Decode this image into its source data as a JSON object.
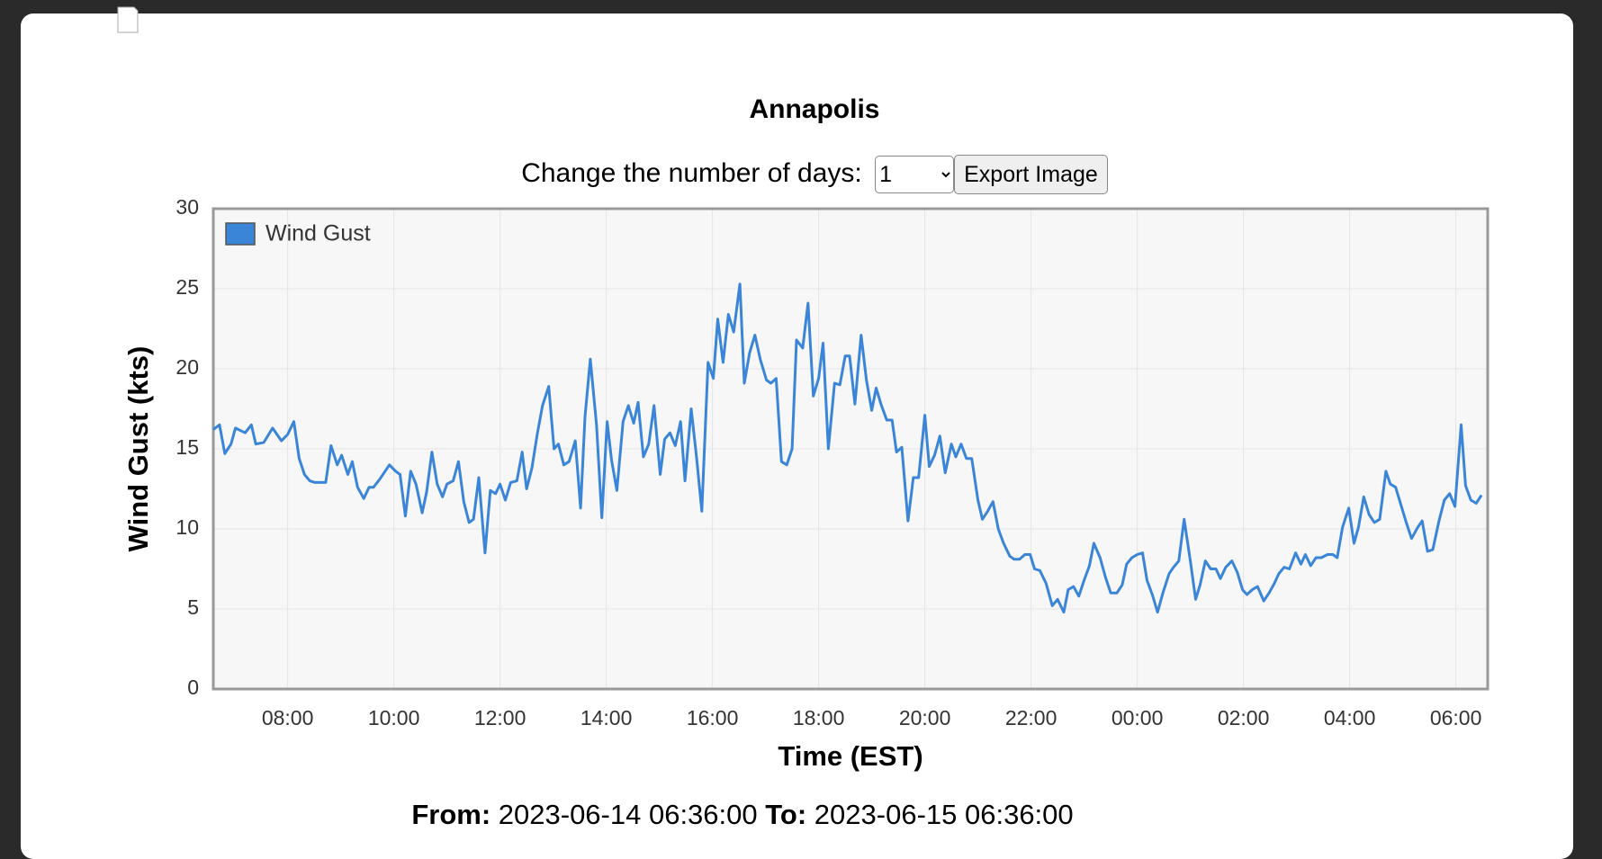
{
  "controls": {
    "label": "Change the number of days:",
    "days": "1",
    "button": "Export Image"
  },
  "footer": {
    "from_label": "From:",
    "to_label": "To:"
  },
  "chart_data": {
    "type": "line",
    "title": "Annapolis",
    "x_label": "Time (EST)",
    "y_label": "Wind Gust (kts)",
    "xlim": [
      "2023-06-14 06:36:00",
      "2023-06-15 06:36:00"
    ],
    "xticks": [
      "08:00",
      "10:00",
      "12:00",
      "14:00",
      "16:00",
      "18:00",
      "20:00",
      "22:00",
      "00:00",
      "02:00",
      "04:00",
      "06:00"
    ],
    "ylim": [
      0,
      30
    ],
    "yticks": [
      0,
      5,
      10,
      15,
      20,
      25,
      30
    ],
    "grid": true,
    "legend": "upper left",
    "x": [
      "06:36",
      "06:43",
      "06:49",
      "06:56",
      "07:01",
      "07:12",
      "07:19",
      "07:24",
      "07:33",
      "07:43",
      "07:53",
      "08:00",
      "08:07",
      "08:13",
      "08:19",
      "08:25",
      "08:31",
      "08:43",
      "08:49",
      "08:56",
      "09:01",
      "09:08",
      "09:13",
      "09:19",
      "09:26",
      "09:32",
      "09:37",
      "09:44",
      "09:55",
      "10:02",
      "10:07",
      "10:13",
      "10:19",
      "10:25",
      "10:32",
      "10:37",
      "10:43",
      "10:49",
      "10:55",
      "11:00",
      "11:07",
      "11:13",
      "11:19",
      "11:25",
      "11:30",
      "11:36",
      "11:43",
      "11:49",
      "11:55",
      "12:00",
      "12:06",
      "12:12",
      "12:19",
      "12:25",
      "12:30",
      "12:36",
      "12:42",
      "12:48",
      "12:55",
      "13:01",
      "13:06",
      "13:12",
      "13:18",
      "13:25",
      "13:31",
      "13:36",
      "13:42",
      "13:49",
      "13:55",
      "14:01",
      "14:06",
      "14:12",
      "14:19",
      "14:25",
      "14:31",
      "14:36",
      "14:42",
      "14:48",
      "14:54",
      "15:01",
      "15:06",
      "15:12",
      "15:18",
      "15:24",
      "15:29",
      "15:36",
      "15:42",
      "15:48",
      "15:55",
      "16:01",
      "16:06",
      "16:12",
      "16:18",
      "16:24",
      "16:31",
      "16:36",
      "16:42",
      "16:48",
      "16:54",
      "17:01",
      "17:06",
      "17:12",
      "17:18",
      "17:24",
      "17:30",
      "17:35",
      "17:42",
      "17:48",
      "17:54",
      "18:00",
      "18:05",
      "18:11",
      "18:18",
      "18:24",
      "18:30",
      "18:35",
      "18:41",
      "18:48",
      "18:54",
      "19:00",
      "19:05",
      "19:11",
      "19:17",
      "19:23",
      "19:28",
      "19:34",
      "19:41",
      "19:47",
      "19:53",
      "20:00",
      "20:05",
      "20:11",
      "20:17",
      "20:23",
      "20:30",
      "20:35",
      "20:41",
      "20:47",
      "20:53",
      "21:00",
      "21:05",
      "21:11",
      "21:17",
      "21:23",
      "21:29",
      "21:36",
      "21:41",
      "21:47",
      "21:53",
      "21:59",
      "22:04",
      "22:10",
      "22:17",
      "22:24",
      "22:30",
      "22:37",
      "22:42",
      "22:48",
      "22:54",
      "23:00",
      "23:06",
      "23:11",
      "23:18",
      "23:24",
      "23:30",
      "23:37",
      "23:43",
      "23:48",
      "23:54",
      "00:00",
      "00:06",
      "00:11",
      "00:17",
      "00:23",
      "00:29",
      "00:36",
      "00:41",
      "00:47",
      "00:53",
      "01:00",
      "01:06",
      "01:11",
      "01:17",
      "01:23",
      "01:29",
      "01:34",
      "01:40",
      "01:47",
      "01:53",
      "01:59",
      "02:04",
      "02:10",
      "02:16",
      "02:23",
      "02:29",
      "02:35",
      "02:40",
      "02:46",
      "02:52",
      "02:59",
      "03:05",
      "03:10",
      "03:16",
      "03:22",
      "03:28",
      "03:35",
      "03:41",
      "03:46",
      "03:52",
      "03:59",
      "04:05",
      "04:10",
      "04:16",
      "04:22",
      "04:28",
      "04:34",
      "04:41",
      "04:46",
      "04:52",
      "04:58",
      "05:04",
      "05:10",
      "05:17",
      "05:22",
      "05:28",
      "05:34",
      "05:41",
      "05:47",
      "05:53",
      "05:59",
      "06:06",
      "06:11",
      "06:17",
      "06:23",
      "06:29"
    ],
    "series": [
      {
        "name": "Wind Gust",
        "color": "#3a85d8",
        "values": [
          16.2,
          16.5,
          14.7,
          15.3,
          16.3,
          16.0,
          16.5,
          15.3,
          15.4,
          16.3,
          15.5,
          15.9,
          16.7,
          14.4,
          13.4,
          13.0,
          12.9,
          12.9,
          15.2,
          14.0,
          14.6,
          13.4,
          14.2,
          12.6,
          11.9,
          12.6,
          12.6,
          13.1,
          14.0,
          13.6,
          13.4,
          10.8,
          13.6,
          12.8,
          11.0,
          12.3,
          14.8,
          12.8,
          12.0,
          12.8,
          13.0,
          14.2,
          11.7,
          10.4,
          10.6,
          13.2,
          8.5,
          12.4,
          12.2,
          12.8,
          11.8,
          12.9,
          13.0,
          14.8,
          12.5,
          13.8,
          15.9,
          17.7,
          18.9,
          15.0,
          15.3,
          14.0,
          14.2,
          15.5,
          11.3,
          17.0,
          20.6,
          16.5,
          10.7,
          16.7,
          14.3,
          12.4,
          16.7,
          17.7,
          16.6,
          17.9,
          14.5,
          15.3,
          17.7,
          13.4,
          15.6,
          16.0,
          15.2,
          16.7,
          13.0,
          17.5,
          14.5,
          11.1,
          20.4,
          19.4,
          23.1,
          20.4,
          23.4,
          22.3,
          25.3,
          19.1,
          21.0,
          22.1,
          20.6,
          19.3,
          19.1,
          19.4,
          14.2,
          14.0,
          15.0,
          21.8,
          21.3,
          24.1,
          18.3,
          19.4,
          21.6,
          15.0,
          19.1,
          19.0,
          20.8,
          20.8,
          17.8,
          22.1,
          19.3,
          17.4,
          18.8,
          17.7,
          16.8,
          16.8,
          14.8,
          15.1,
          10.5,
          13.2,
          13.2,
          17.1,
          13.9,
          14.6,
          15.8,
          13.5,
          15.3,
          14.5,
          15.3,
          14.4,
          14.4,
          11.8,
          10.6,
          11.1,
          11.7,
          10.0,
          9.1,
          8.3,
          8.1,
          8.1,
          8.4,
          8.4,
          7.5,
          7.4,
          6.6,
          5.2,
          5.6,
          4.8,
          6.2,
          6.4,
          5.8,
          6.8,
          7.7,
          9.1,
          8.2,
          7.0,
          6.0,
          6.0,
          6.5,
          7.8,
          8.2,
          8.4,
          8.5,
          6.8,
          5.9,
          4.8,
          6.0,
          7.2,
          7.6,
          8.0,
          10.6,
          8.0,
          5.6,
          6.5,
          8.0,
          7.5,
          7.5,
          6.9,
          7.6,
          8.0,
          7.3,
          6.2,
          5.9,
          6.2,
          6.4,
          5.5,
          6.0,
          6.6,
          7.2,
          7.6,
          7.5,
          8.5,
          7.8,
          8.4,
          7.7,
          8.2,
          8.2,
          8.4,
          8.4,
          8.2,
          10.1,
          11.3,
          9.1,
          10.1,
          12.0,
          10.9,
          10.4,
          10.6,
          13.6,
          12.8,
          12.6,
          11.5,
          10.4,
          9.4,
          10.1,
          10.5,
          8.6,
          8.7,
          10.5,
          11.8,
          12.2,
          11.4,
          16.5,
          12.7,
          11.8,
          11.6,
          12.1
        ]
      }
    ]
  }
}
